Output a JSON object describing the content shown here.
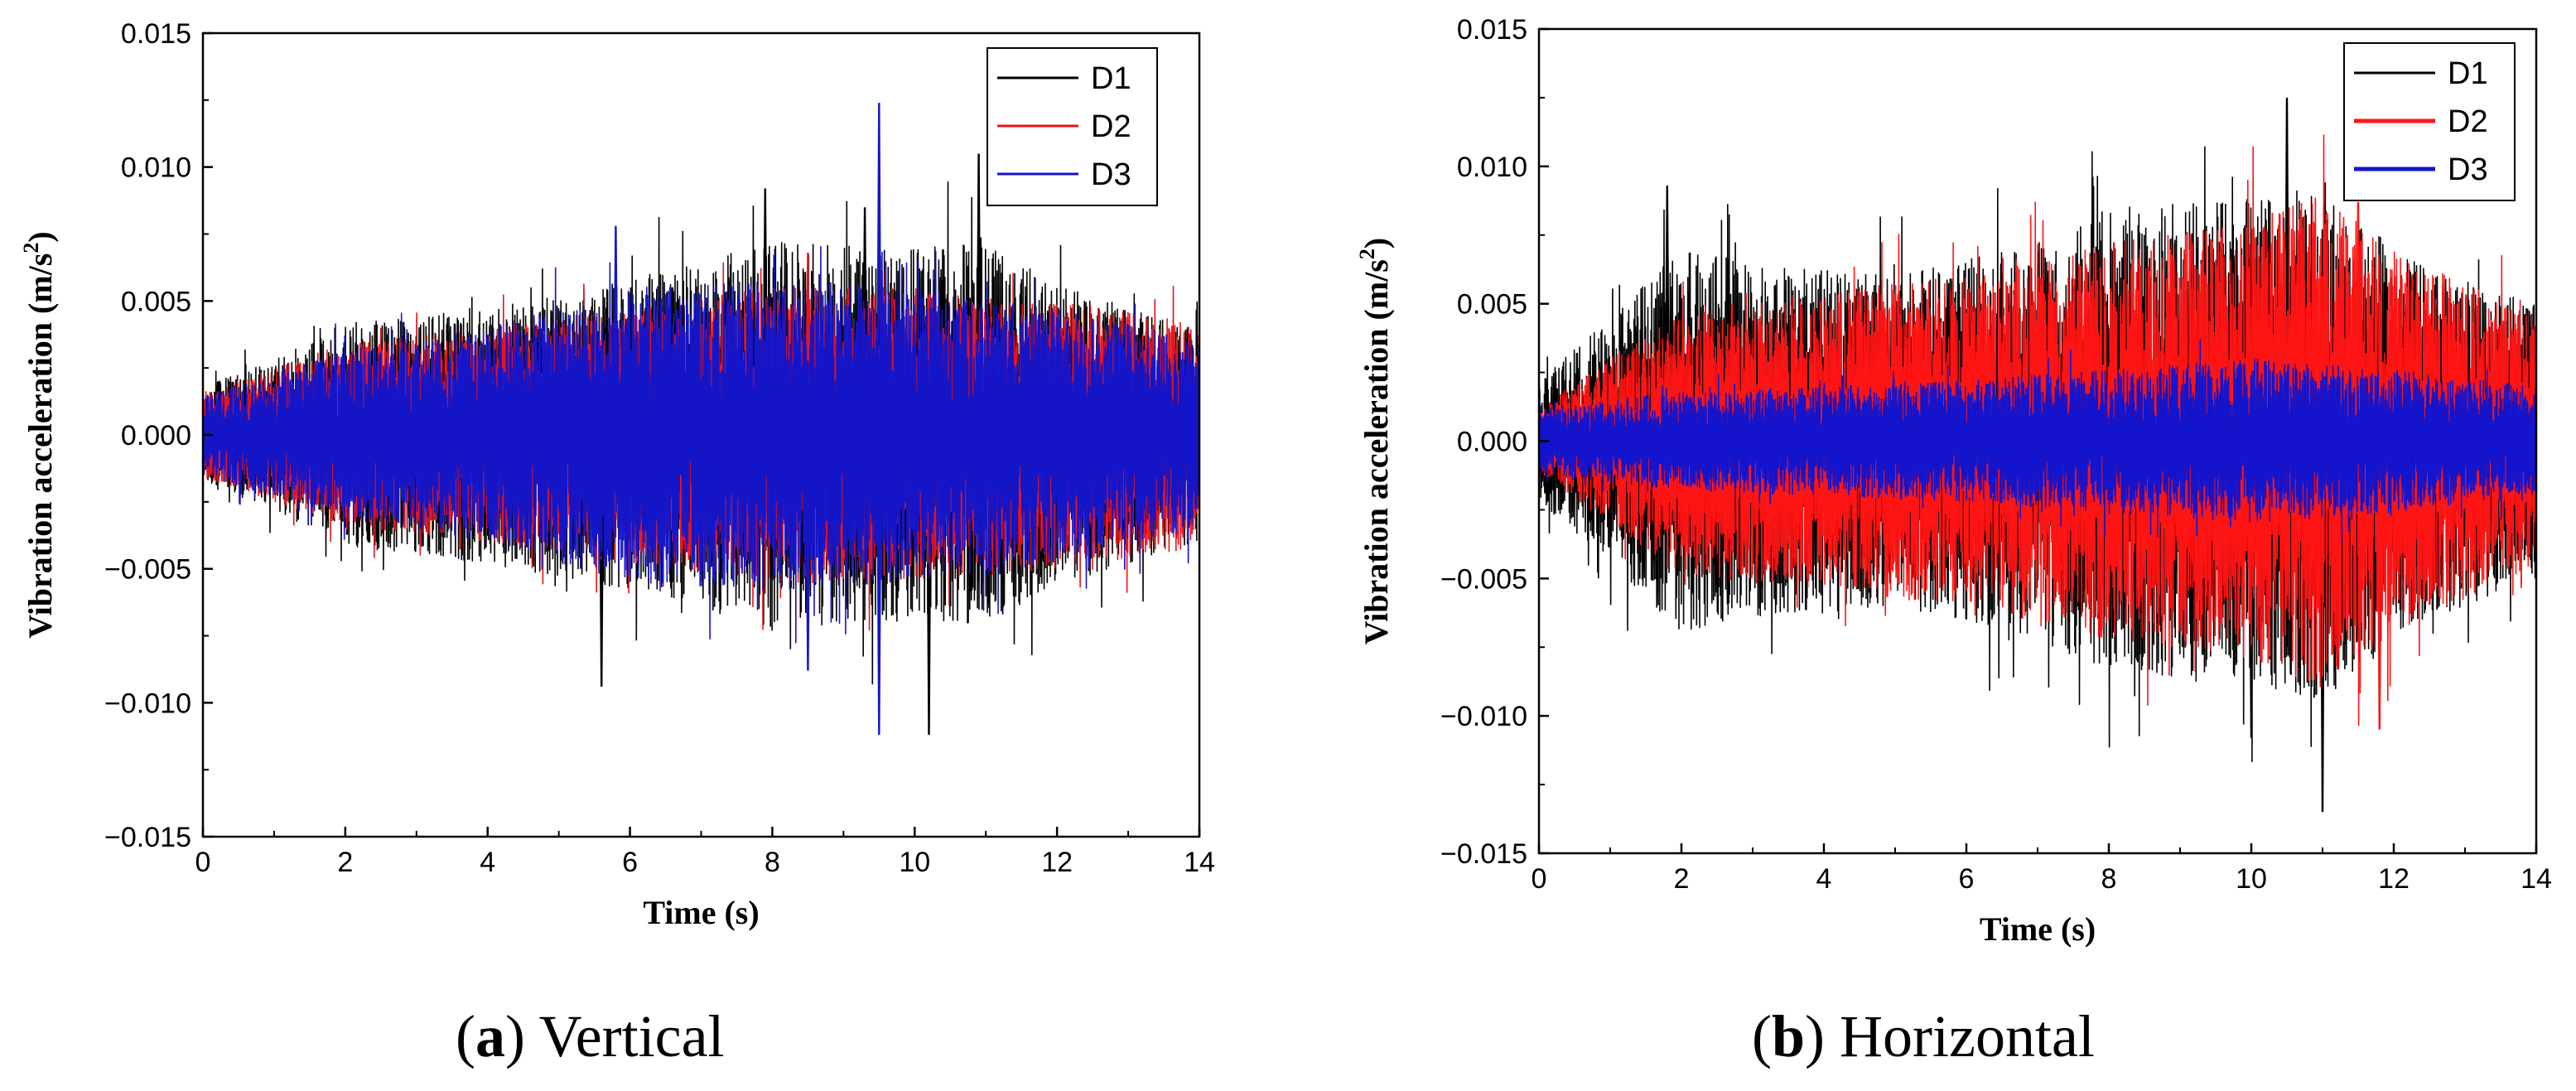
{
  "panels": [
    {
      "id": "a",
      "caption_letter": "a",
      "caption_text": "Vertical",
      "chart_data": {
        "type": "line",
        "title": "",
        "xlabel": "Time (s)",
        "ylabel": "Vibration acceleration (m/s²)",
        "ylabel_main": "Vibration acceleration (m/s",
        "ylabel_sup": "2",
        "ylabel_end": ")",
        "xlim": [
          0,
          14
        ],
        "ylim": [
          -0.015,
          0.015
        ],
        "xticks": [
          0,
          2,
          4,
          6,
          8,
          10,
          12,
          14
        ],
        "yticks": [
          0.015,
          0.01,
          0.005,
          0.0,
          -0.005,
          -0.01,
          -0.015
        ],
        "ytick_labels": [
          "0.015",
          "0.010",
          "0.005",
          "0.000",
          "−0.005",
          "−0.010",
          "−0.015"
        ],
        "legend_position": "top-right",
        "series": [
          {
            "name": "D1",
            "color": "#000000",
            "envelope_t": [
              0,
              1,
              2,
              4,
              6,
              8,
              10,
              11,
              12,
              14
            ],
            "envelope_amp": [
              0.0018,
              0.0028,
              0.0042,
              0.0048,
              0.0058,
              0.0072,
              0.007,
              0.0072,
              0.0056,
              0.004
            ],
            "peaks": [
              {
                "t": 7.9,
                "v": 0.0092
              },
              {
                "t": 10.9,
                "v": 0.0105
              },
              {
                "t": 10.2,
                "v": -0.0112
              },
              {
                "t": 5.6,
                "v": -0.0094
              },
              {
                "t": 9.3,
                "v": 0.0085
              }
            ]
          },
          {
            "name": "D2",
            "color": "#e8141b",
            "envelope_t": [
              0,
              2,
              4,
              6,
              8,
              10,
              12,
              14
            ],
            "envelope_amp": [
              0.0016,
              0.0034,
              0.004,
              0.0048,
              0.0055,
              0.0055,
              0.005,
              0.0042
            ],
            "peaks": [
              {
                "t": 8.5,
                "v": 0.0068
              }
            ]
          },
          {
            "name": "D3",
            "color": "#1515c8",
            "envelope_t": [
              0,
              2,
              4,
              6,
              8,
              10,
              12,
              14
            ],
            "envelope_amp": [
              0.0015,
              0.0032,
              0.004,
              0.0055,
              0.0058,
              0.0055,
              0.0048,
              0.0035
            ],
            "peaks": [
              {
                "t": 9.5,
                "v": 0.0124
              },
              {
                "t": 9.5,
                "v": -0.0112
              },
              {
                "t": 8.5,
                "v": -0.0088
              },
              {
                "t": 5.8,
                "v": 0.0078
              }
            ]
          }
        ]
      }
    },
    {
      "id": "b",
      "caption_letter": "b",
      "caption_text": "Horizontal",
      "chart_data": {
        "type": "line",
        "title": "",
        "xlabel": "Time (s)",
        "ylabel": "Vibration acceleration (m/s²)",
        "ylabel_main": "Vibration acceleration (m/s",
        "ylabel_sup": "2",
        "ylabel_end": ")",
        "xlim": [
          0,
          14
        ],
        "ylim": [
          -0.015,
          0.015
        ],
        "xticks": [
          0,
          2,
          4,
          6,
          8,
          10,
          12,
          14
        ],
        "yticks": [
          0.015,
          0.01,
          0.005,
          0.0,
          -0.005,
          -0.01,
          -0.015
        ],
        "ytick_labels": [
          "0.015",
          "0.010",
          "0.005",
          "0.000",
          "−0.005",
          "−0.010",
          "−0.015"
        ],
        "legend_position": "top-right",
        "series": [
          {
            "name": "D1",
            "color": "#000000",
            "envelope_t": [
              0,
              1,
              2,
              3,
              5,
              7,
              8,
              10,
              11,
              12,
              14
            ],
            "envelope_amp": [
              0.0022,
              0.0045,
              0.007,
              0.0065,
              0.006,
              0.0072,
              0.0085,
              0.0088,
              0.0095,
              0.007,
              0.005
            ],
            "peaks": [
              {
                "t": 10.5,
                "v": 0.0125
              },
              {
                "t": 11.0,
                "v": -0.0135
              },
              {
                "t": 1.8,
                "v": 0.0093
              },
              {
                "t": 10.0,
                "v": -0.0108
              }
            ]
          },
          {
            "name": "D2",
            "color": "#ff1414",
            "envelope_t": [
              0,
              1,
              2,
              4,
              6,
              8,
              10,
              11,
              12,
              14
            ],
            "envelope_amp": [
              0.0012,
              0.003,
              0.0048,
              0.0055,
              0.006,
              0.0072,
              0.008,
              0.009,
              0.007,
              0.0045
            ],
            "peaks": [
              {
                "t": 11.5,
                "v": 0.0087
              },
              {
                "t": 11.8,
                "v": -0.0105
              }
            ]
          },
          {
            "name": "D3",
            "color": "#1414cc",
            "envelope_t": [
              0,
              2,
              4,
              6,
              8,
              10,
              12,
              14
            ],
            "envelope_amp": [
              0.0012,
              0.0018,
              0.002,
              0.0022,
              0.0026,
              0.003,
              0.0026,
              0.002
            ],
            "peaks": []
          }
        ]
      }
    }
  ]
}
